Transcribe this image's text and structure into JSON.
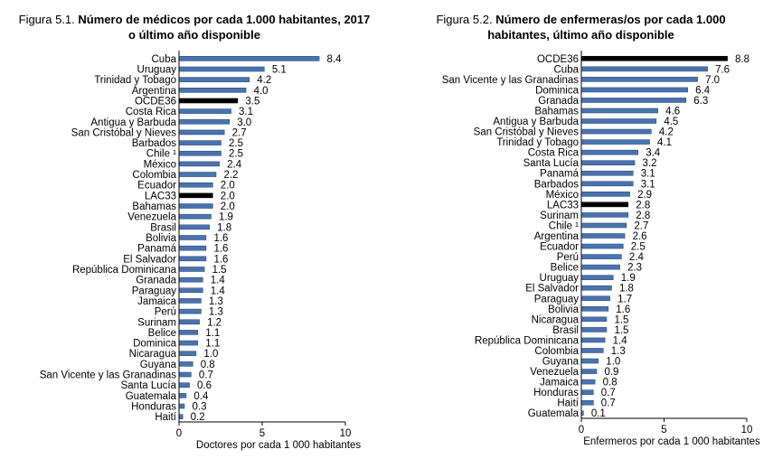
{
  "chart_data": [
    {
      "type": "bar",
      "orientation": "horizontal",
      "title_prefix": "Figura 5.1.",
      "title_line1": "Número de médicos por cada 1.000 habitantes, 2017",
      "title_line2": "o último año disponible",
      "xlabel": "Doctores por cada 1 000 habitantes",
      "xlim": [
        0,
        10
      ],
      "xticks": [
        "0",
        "5",
        "10"
      ],
      "grid": false,
      "colors": {
        "bar": "#4A73AE",
        "highlight": "#000000",
        "bar_edge": "#2F4F7F"
      },
      "categories": [
        "Cuba",
        "Uruguay",
        "Trinidad y Tobago",
        "Argentina",
        "OCDE36",
        "Costa Rica",
        "Antigua y Barbuda",
        "San Cristóbal y Nieves",
        "Barbados",
        "Chile ¹",
        "México",
        "Colombia",
        "Ecuador",
        "LAC33",
        "Bahamas",
        "Venezuela",
        "Brasil",
        "Bolivia",
        "Panamá",
        "El Salvador",
        "República Dominicana",
        "Granada",
        "Paraguay",
        "Jamaica",
        "Perú",
        "Surinam",
        "Belice",
        "Dominica",
        "Nicaragua",
        "Guyana",
        "San Vicente y las Granadinas",
        "Santa Lucía",
        "Guatemala",
        "Honduras",
        "Haití"
      ],
      "values": [
        8.4,
        5.1,
        4.2,
        4.0,
        3.5,
        3.1,
        3.0,
        2.7,
        2.5,
        2.5,
        2.4,
        2.2,
        2.0,
        2.0,
        2.0,
        1.9,
        1.8,
        1.6,
        1.6,
        1.6,
        1.5,
        1.4,
        1.4,
        1.3,
        1.3,
        1.2,
        1.1,
        1.1,
        1.0,
        0.8,
        0.7,
        0.6,
        0.4,
        0.3,
        0.2
      ],
      "value_labels": [
        "8.4",
        "5.1",
        "4.2",
        "4.0",
        "3.5",
        "3.1",
        "3.0",
        "2.7",
        "2.5",
        "2.5",
        "2.4",
        "2.2",
        "2.0",
        "2.0",
        "2.0",
        "1.9",
        "1.8",
        "1.6",
        "1.6",
        "1.6",
        "1.5",
        "1.4",
        "1.4",
        "1.3",
        "1.3",
        "1.2",
        "1.1",
        "1.1",
        "1.0",
        "0.8",
        "0.7",
        "0.6",
        "0.4",
        "0.3",
        "0.2"
      ],
      "highlighted": [
        "OCDE36",
        "LAC33"
      ]
    },
    {
      "type": "bar",
      "orientation": "horizontal",
      "title_prefix": "Figura 5.2.",
      "title_line1": "Número de enfermeras/os por cada 1.000",
      "title_line2": "habitantes, último año disponible",
      "xlabel": "Enfermeros por cada 1 000 habitantes",
      "xlim": [
        0,
        10
      ],
      "xticks": [
        "0",
        "5",
        "10"
      ],
      "grid": false,
      "colors": {
        "bar": "#4A73AE",
        "highlight": "#000000",
        "bar_edge": "#2F4F7F"
      },
      "categories": [
        "OCDE36",
        "Cuba",
        "San Vicente y las Granadinas",
        "Dominica",
        "Granada",
        "Bahamas",
        "Antigua y Barbuda",
        "San Cristóbal y Nieves",
        "Trinidad y Tobago",
        "Costa Rica",
        "Santa Lucía",
        "Panamá",
        "Barbados",
        "México",
        "LAC33",
        "Surinam",
        "Chile ¹",
        "Argentina",
        "Ecuador",
        "Perú",
        "Belice",
        "Uruguay",
        "El Salvador",
        "Paraguay",
        "Bolivia",
        "Nicaragua",
        "Brasil",
        "República Dominicana",
        "Colombia",
        "Guyana",
        "Venezuela",
        "Jamaica",
        "Honduras",
        "Haití",
        "Guatemala"
      ],
      "values": [
        8.8,
        7.6,
        7.0,
        6.4,
        6.3,
        4.6,
        4.5,
        4.2,
        4.1,
        3.4,
        3.2,
        3.1,
        3.1,
        2.9,
        2.8,
        2.8,
        2.7,
        2.6,
        2.5,
        2.4,
        2.3,
        1.9,
        1.8,
        1.7,
        1.6,
        1.5,
        1.5,
        1.4,
        1.3,
        1.0,
        0.9,
        0.8,
        0.7,
        0.7,
        0.1
      ],
      "value_labels": [
        "8.8",
        "7.6",
        "7.0",
        "6.4",
        "6.3",
        "4.6",
        "4.5",
        "4.2",
        "4.1",
        "3.4",
        "3.2",
        "3.1",
        "3.1",
        "2.9",
        "2.8",
        "2.8",
        "2.7",
        "2.6",
        "2.5",
        "2.4",
        "2.3",
        "1.9",
        "1.8",
        "1.7",
        "1.6",
        "1.5",
        "1.5",
        "1.4",
        "1.3",
        "1.0",
        "0.9",
        "0.8",
        "0.7",
        "0.7",
        "0.1"
      ],
      "highlighted": [
        "OCDE36",
        "LAC33"
      ]
    }
  ]
}
